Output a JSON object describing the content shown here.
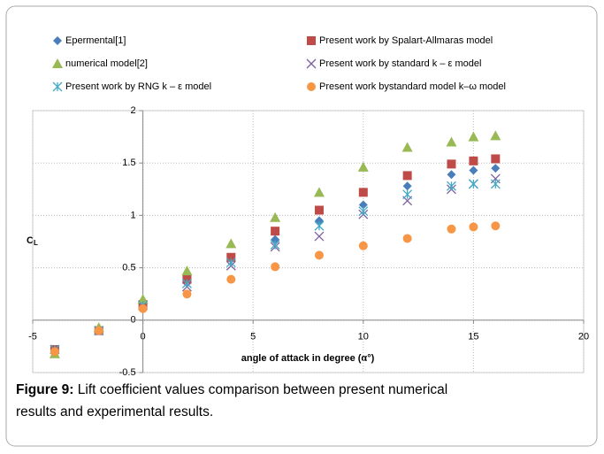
{
  "chart_data": {
    "type": "scatter",
    "x_label": "angle of attack in degree (α°)",
    "y_label": "C",
    "y_label_sub": "L",
    "x": [
      -4,
      -2,
      0,
      2,
      4,
      6,
      8,
      10,
      12,
      14,
      15,
      16
    ],
    "series": [
      {
        "name": "Epermental[1]",
        "color": "#4a7ebb",
        "marker": "diamond",
        "values": [
          -0.28,
          -0.1,
          0.15,
          0.4,
          0.58,
          0.77,
          0.95,
          1.1,
          1.28,
          1.39,
          1.43,
          1.45
        ]
      },
      {
        "name": "Present work by Spalart-Allmaras model",
        "color": "#be4b48",
        "marker": "square",
        "values": [
          -0.28,
          -0.1,
          0.15,
          0.39,
          0.6,
          0.85,
          1.05,
          1.22,
          1.38,
          1.49,
          1.52,
          1.54
        ]
      },
      {
        "name": "numerical model[2]",
        "color": "#98b954",
        "marker": "triangle",
        "values": [
          -0.32,
          -0.07,
          0.2,
          0.47,
          0.73,
          0.98,
          1.22,
          1.46,
          1.65,
          1.7,
          1.75,
          1.76
        ]
      },
      {
        "name": "Present work by standard k – ε model",
        "color": "#7d60a0",
        "marker": "x",
        "values": [
          -0.28,
          -0.1,
          0.14,
          0.32,
          0.52,
          0.7,
          0.8,
          1.01,
          1.14,
          1.25,
          1.3,
          1.35
        ]
      },
      {
        "name": "Present work by RNG k – ε model",
        "color": "#46aac5",
        "marker": "asterisk",
        "values": [
          -0.28,
          -0.1,
          0.14,
          0.35,
          0.55,
          0.72,
          0.9,
          1.04,
          1.2,
          1.28,
          1.3,
          1.3
        ]
      },
      {
        "name": "Present work bystandard model k–ω model",
        "color": "#f79646",
        "marker": "circle",
        "values": [
          -0.3,
          -0.1,
          0.11,
          0.25,
          0.39,
          0.51,
          0.62,
          0.71,
          0.78,
          0.87,
          0.89,
          0.9
        ]
      }
    ],
    "xlim": [
      -5,
      20
    ],
    "xticks": [
      -5,
      0,
      5,
      10,
      15,
      20
    ],
    "ylim": [
      -0.5,
      2
    ],
    "yticks": [
      -0.5,
      0,
      0.5,
      1,
      1.5,
      2
    ],
    "grid": true,
    "legend": "top",
    "caption": {
      "label": "Figure 9:",
      "lines": [
        "Lift coefficient values comparison between present numerical",
        "results and experimental results."
      ]
    }
  }
}
